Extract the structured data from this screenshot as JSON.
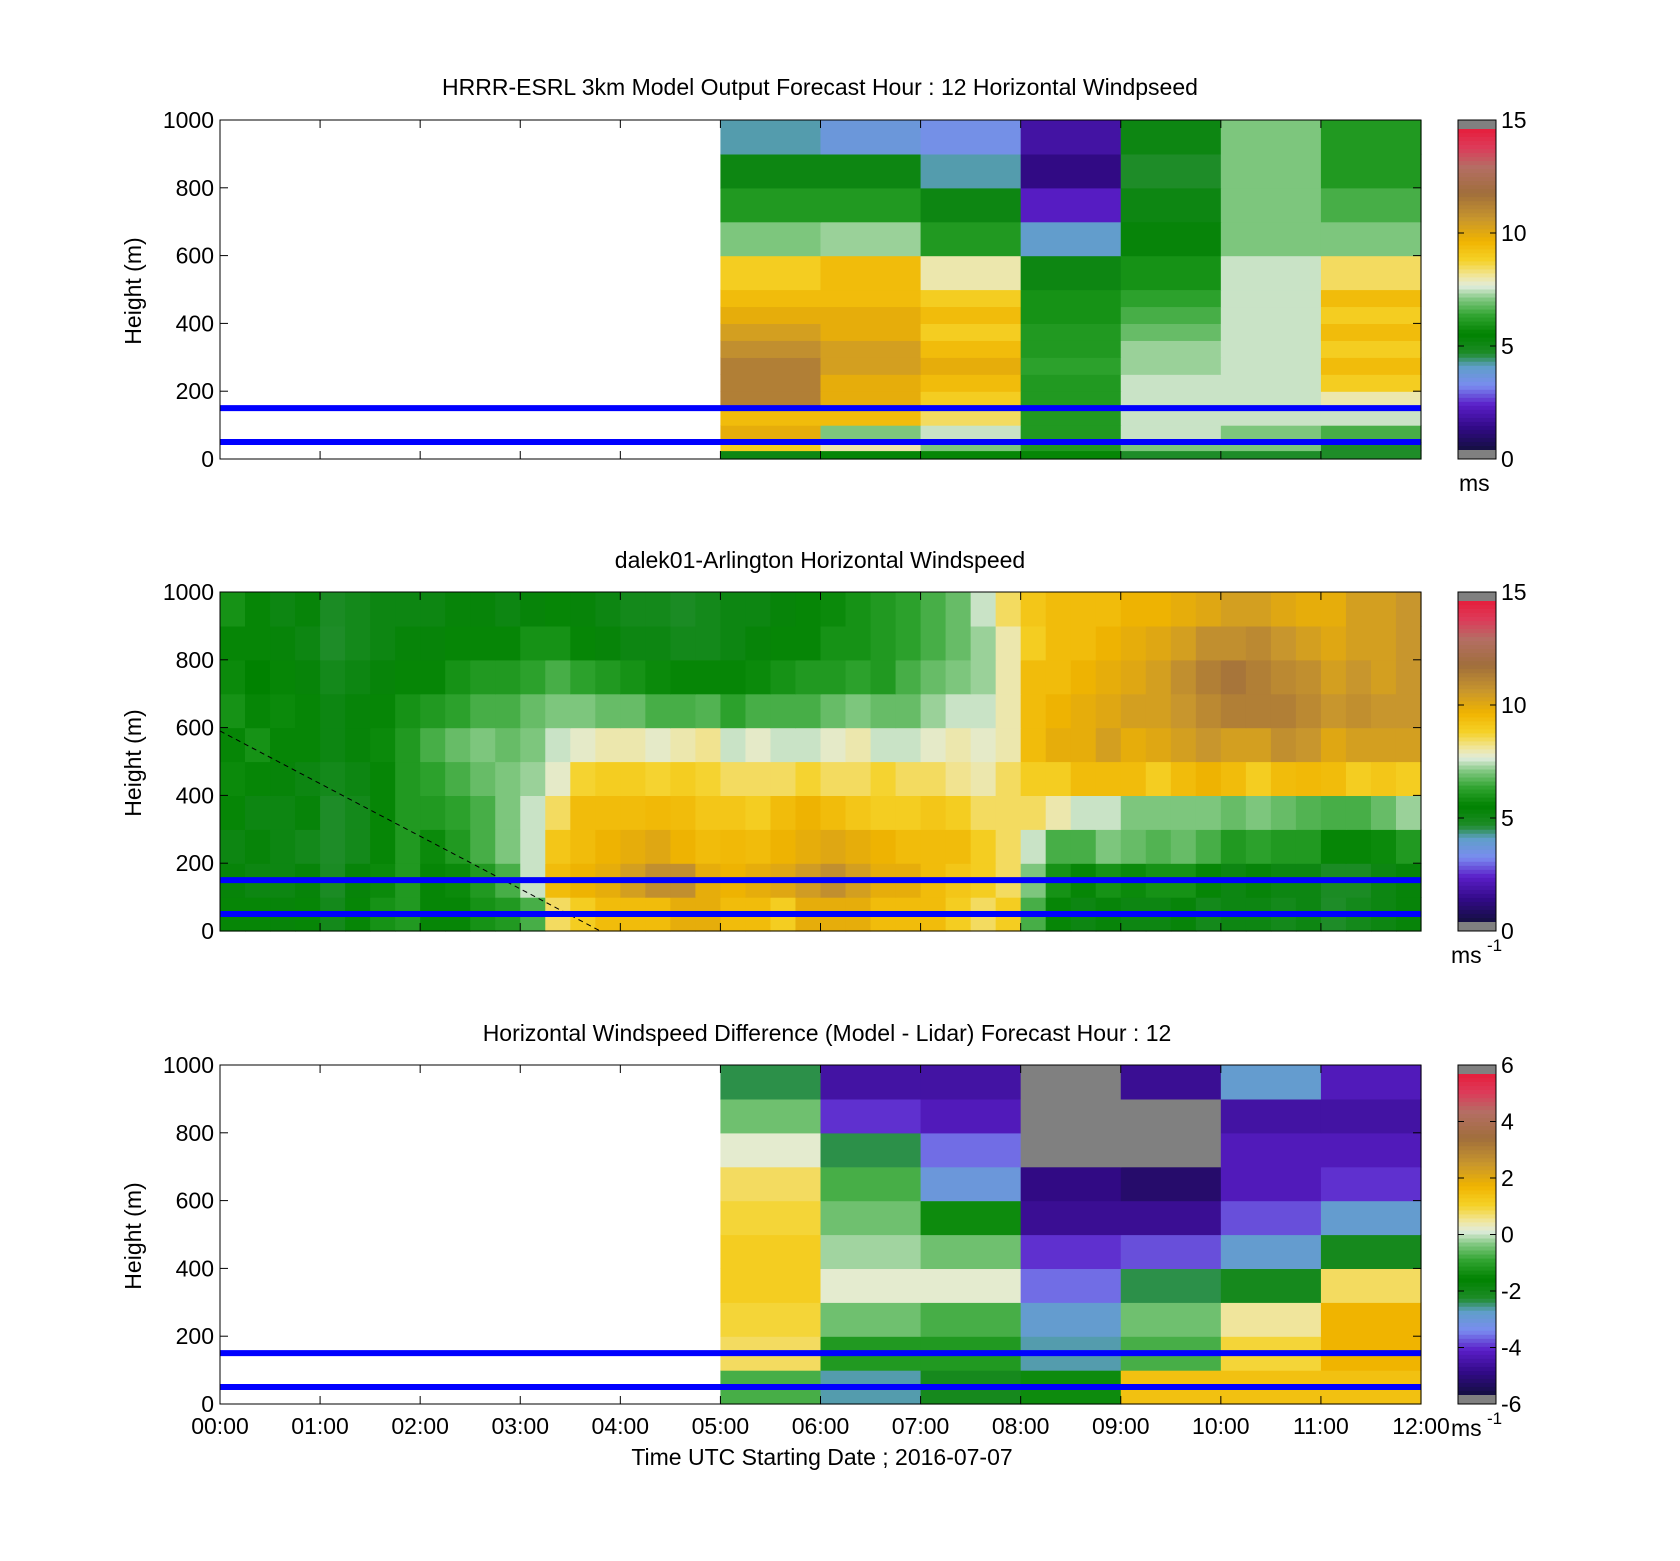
{
  "figure": {
    "background": "#ffffff"
  },
  "colors": {
    "guide_line": "#0000ff",
    "gap": "#808080",
    "blank": "#ffffff"
  },
  "chart_data": [
    {
      "id": "model",
      "type": "heatmap",
      "title": "HRRR-ESRL 3km Model Output   Forecast Hour : 12 Horizontal Windpseed",
      "xlabel": "",
      "ylabel": "Height (m)",
      "xlim": [
        0,
        12
      ],
      "ylim": [
        0,
        1000
      ],
      "yticks": [
        0,
        200,
        400,
        600,
        800,
        1000
      ],
      "ytick_labels": [
        "0",
        "200",
        "400",
        "600",
        "800",
        "1000"
      ],
      "xticks": [
        0,
        1,
        2,
        3,
        4,
        5,
        6,
        7,
        8,
        9,
        10,
        11,
        12
      ],
      "xtick_labels": [],
      "guide_lines_m": [
        50,
        150
      ],
      "colorbar": {
        "min": 0,
        "max": 15,
        "ticks": [
          0,
          5,
          10,
          15
        ],
        "tick_labels": [
          "0",
          "5",
          "10",
          "15"
        ],
        "unit": "ms",
        "unit_sup": ""
      },
      "x_edges_hours": [
        5,
        6,
        7,
        8,
        9,
        10,
        11,
        12
      ],
      "y_edges_m": [
        0,
        25,
        50,
        100,
        150,
        200,
        250,
        300,
        350,
        400,
        450,
        500,
        600,
        700,
        800,
        900,
        1000
      ],
      "values": [
        [
          5.0,
          5.5,
          5.5,
          5.5,
          4.5,
          4.5,
          4.5
        ],
        [
          9.0,
          8.0,
          7.0,
          6.0,
          7.0,
          7.0,
          4.5
        ],
        [
          10.0,
          7.0,
          7.5,
          6.0,
          7.5,
          7.0,
          6.5
        ],
        [
          9.5,
          9.5,
          8.5,
          6.0,
          7.5,
          7.5,
          7.5
        ],
        [
          11.5,
          10.0,
          9.0,
          6.0,
          7.5,
          7.5,
          8.0
        ],
        [
          11.5,
          10.0,
          9.5,
          6.0,
          7.5,
          7.5,
          9.0
        ],
        [
          11.5,
          10.5,
          10.0,
          6.2,
          7.2,
          7.5,
          9.5
        ],
        [
          11.0,
          10.5,
          9.5,
          6.0,
          7.2,
          7.5,
          9.0
        ],
        [
          10.5,
          10.0,
          9.0,
          6.0,
          6.8,
          7.5,
          9.5
        ],
        [
          10.0,
          10.0,
          9.5,
          5.8,
          6.5,
          7.5,
          9.0
        ],
        [
          9.5,
          9.5,
          9.0,
          5.8,
          6.2,
          7.5,
          9.5
        ],
        [
          9.0,
          9.5,
          8.0,
          5.0,
          5.8,
          7.5,
          8.5
        ],
        [
          7.0,
          7.2,
          6.0,
          3.8,
          5.2,
          7.0,
          7.0
        ],
        [
          6.0,
          6.0,
          5.0,
          2.0,
          5.0,
          7.0,
          6.5
        ],
        [
          5.0,
          5.0,
          4.0,
          1.0,
          4.5,
          7.0,
          6.0
        ],
        [
          4.0,
          3.5,
          3.2,
          1.5,
          5.0,
          7.0,
          6.0
        ]
      ]
    },
    {
      "id": "lidar",
      "type": "heatmap",
      "title": "dalek01-Arlington  Horizontal Windspeed",
      "xlabel": "",
      "ylabel": "Height (m)",
      "xlim": [
        0,
        12
      ],
      "ylim": [
        0,
        1000
      ],
      "yticks": [
        0,
        200,
        400,
        600,
        800,
        1000
      ],
      "ytick_labels": [
        "0",
        "200",
        "400",
        "600",
        "800",
        "1000"
      ],
      "xticks": [
        0,
        1,
        2,
        3,
        4,
        5,
        6,
        7,
        8,
        9,
        10,
        11,
        12
      ],
      "xtick_labels": [],
      "guide_lines_m": [
        50,
        150
      ],
      "boundary_line": {
        "x_hours": [
          0,
          3.8
        ],
        "y_m": [
          590,
          0
        ],
        "style": "dashed"
      },
      "colorbar": {
        "min": 0,
        "max": 15,
        "ticks": [
          0,
          5,
          10,
          15
        ],
        "tick_labels": [
          "0",
          "5",
          "10",
          "15"
        ],
        "unit": "ms",
        "unit_sup": "-1"
      },
      "x_edges_hours": [
        0,
        0.25,
        0.5,
        0.75,
        1,
        1.25,
        1.5,
        1.75,
        2,
        2.25,
        2.5,
        2.75,
        3,
        3.25,
        3.5,
        3.75,
        4,
        4.25,
        4.5,
        4.75,
        5,
        5.25,
        5.5,
        5.75,
        6,
        6.25,
        6.5,
        6.75,
        7,
        7.25,
        7.5,
        7.75,
        8,
        8.25,
        8.5,
        8.75,
        9,
        9.25,
        9.5,
        9.75,
        10,
        10.25,
        10.5,
        10.75,
        11,
        11.25,
        11.5,
        11.75,
        12
      ],
      "y_edges_m": [
        0,
        100,
        200,
        300,
        400,
        500,
        600,
        700,
        800,
        900,
        1000
      ],
      "values": [
        [
          5.5,
          5.5,
          5.2,
          5.5,
          4.8,
          5.5,
          5.8,
          6.0,
          5.5,
          5.5,
          5.8,
          6.0,
          6.5,
          8.5,
          9.0,
          9.5,
          9.5,
          9.5,
          10.0,
          10.0,
          9.5,
          9.5,
          9.0,
          10.0,
          10.0,
          10.0,
          9.5,
          9.5,
          9.5,
          9.0,
          8.5,
          9.0,
          6.5,
          5.5,
          5.0,
          5.2,
          5.0,
          5.0,
          5.2,
          4.8,
          5.0,
          5.0,
          4.8,
          5.0,
          4.5,
          4.8,
          5.0,
          5.2,
          6.0
        ],
        [
          5.2,
          5.0,
          5.0,
          5.2,
          4.6,
          5.2,
          5.6,
          6.0,
          5.5,
          5.6,
          6.0,
          6.5,
          7.5,
          9.5,
          9.8,
          10.0,
          10.5,
          11.0,
          11.0,
          10.0,
          9.8,
          10.0,
          10.2,
          10.6,
          11.0,
          10.5,
          10.0,
          10.0,
          9.5,
          9.2,
          9.0,
          8.5,
          7.0,
          5.8,
          5.5,
          5.8,
          5.6,
          5.8,
          5.8,
          5.5,
          5.0,
          5.2,
          5.0,
          5.0,
          4.6,
          4.6,
          5.0,
          5.2,
          6.0
        ],
        [
          5.0,
          5.2,
          5.0,
          4.8,
          4.5,
          4.8,
          5.5,
          6.0,
          5.6,
          6.0,
          6.5,
          7.0,
          7.5,
          9.2,
          9.5,
          9.8,
          10.0,
          10.2,
          9.8,
          9.5,
          9.6,
          9.5,
          9.8,
          10.0,
          10.2,
          10.0,
          9.8,
          9.5,
          9.5,
          9.5,
          9.0,
          8.5,
          7.5,
          6.5,
          6.5,
          7.0,
          6.8,
          6.6,
          6.8,
          6.5,
          6.0,
          6.2,
          6.0,
          6.0,
          5.5,
          5.5,
          5.6,
          6.0,
          7.0
        ],
        [
          5.5,
          5.0,
          5.0,
          5.2,
          4.5,
          4.8,
          5.5,
          6.0,
          6.0,
          6.2,
          6.5,
          7.0,
          7.5,
          8.5,
          9.5,
          9.5,
          9.5,
          9.6,
          9.5,
          9.2,
          9.2,
          9.0,
          9.5,
          9.8,
          9.5,
          9.2,
          9.0,
          9.0,
          9.2,
          9.0,
          8.5,
          8.5,
          8.5,
          8.0,
          7.5,
          7.5,
          7.0,
          7.0,
          7.0,
          7.0,
          6.8,
          7.0,
          6.8,
          6.6,
          6.5,
          6.5,
          6.8,
          7.2,
          8.0
        ],
        [
          5.6,
          5.5,
          5.2,
          5.0,
          4.8,
          5.0,
          5.5,
          6.0,
          6.2,
          6.5,
          6.8,
          7.0,
          7.2,
          7.8,
          8.8,
          9.0,
          9.0,
          8.8,
          9.0,
          8.8,
          8.5,
          8.5,
          8.5,
          8.8,
          8.5,
          8.5,
          8.8,
          8.5,
          8.5,
          8.2,
          8.0,
          8.5,
          9.0,
          9.0,
          9.5,
          9.5,
          9.5,
          9.0,
          9.5,
          9.8,
          9.5,
          9.0,
          9.5,
          9.6,
          9.5,
          9.0,
          9.2,
          9.0,
          9.5
        ],
        [
          5.5,
          5.8,
          5.5,
          5.5,
          5.0,
          5.2,
          5.6,
          6.0,
          6.5,
          6.8,
          7.0,
          6.8,
          7.0,
          7.5,
          7.8,
          8.0,
          8.0,
          7.8,
          8.0,
          8.2,
          7.5,
          7.8,
          7.5,
          7.5,
          7.8,
          8.0,
          7.5,
          7.5,
          7.8,
          8.0,
          7.8,
          8.0,
          9.5,
          10.0,
          10.0,
          10.5,
          10.0,
          10.2,
          10.5,
          10.8,
          10.5,
          10.5,
          11.0,
          10.8,
          10.2,
          10.5,
          10.5,
          10.5,
          10.8
        ],
        [
          5.8,
          5.5,
          5.6,
          5.5,
          5.0,
          5.2,
          5.5,
          5.8,
          6.0,
          6.2,
          6.5,
          6.5,
          6.8,
          7.0,
          7.0,
          6.8,
          6.8,
          6.5,
          6.5,
          6.6,
          6.2,
          6.5,
          6.5,
          6.5,
          6.8,
          7.0,
          6.8,
          6.8,
          7.2,
          7.5,
          7.5,
          8.0,
          9.5,
          9.8,
          10.0,
          10.2,
          10.5,
          10.5,
          10.8,
          11.2,
          11.5,
          11.5,
          11.5,
          11.2,
          10.8,
          11.0,
          10.8,
          10.8,
          11.0
        ],
        [
          5.6,
          5.4,
          5.5,
          5.2,
          4.8,
          5.0,
          5.2,
          5.5,
          5.5,
          5.8,
          6.0,
          6.0,
          6.2,
          6.5,
          6.2,
          6.0,
          5.8,
          5.6,
          5.5,
          5.5,
          5.5,
          5.6,
          5.8,
          6.0,
          6.0,
          6.2,
          6.0,
          6.5,
          6.8,
          7.0,
          7.2,
          8.0,
          9.5,
          9.5,
          9.8,
          10.0,
          10.2,
          10.5,
          11.0,
          11.5,
          11.8,
          11.5,
          11.2,
          11.0,
          10.5,
          10.8,
          10.5,
          10.8,
          11.0
        ],
        [
          5.5,
          5.5,
          5.2,
          5.0,
          4.5,
          4.8,
          5.0,
          5.2,
          5.2,
          5.5,
          5.5,
          5.5,
          5.8,
          5.8,
          5.5,
          5.2,
          5.0,
          5.0,
          4.8,
          4.8,
          5.0,
          5.2,
          5.5,
          5.5,
          5.8,
          5.8,
          6.0,
          6.2,
          6.5,
          6.8,
          7.2,
          8.0,
          9.0,
          9.5,
          9.5,
          9.8,
          10.0,
          10.2,
          10.5,
          11.0,
          11.0,
          11.2,
          10.8,
          10.5,
          10.2,
          10.5,
          10.5,
          10.8,
          11.0
        ],
        [
          5.8,
          5.5,
          5.0,
          5.2,
          4.6,
          4.8,
          5.0,
          5.0,
          5.0,
          5.2,
          5.2,
          5.0,
          5.2,
          5.5,
          5.2,
          5.0,
          4.8,
          4.8,
          4.6,
          4.8,
          5.0,
          5.0,
          5.2,
          5.5,
          5.6,
          5.8,
          6.0,
          6.2,
          6.5,
          6.8,
          7.5,
          8.5,
          9.2,
          9.5,
          9.5,
          9.5,
          9.8,
          9.8,
          10.0,
          10.2,
          10.5,
          10.5,
          10.2,
          10.0,
          10.0,
          10.5,
          10.5,
          10.8,
          11.5
        ]
      ]
    },
    {
      "id": "diff",
      "type": "heatmap",
      "title": "Horizontal Windspeed Difference (Model - Lidar) Forecast Hour : 12",
      "xlabel": "Time UTC  Starting Date ; 2016-07-07",
      "ylabel": "Height (m)",
      "xlim": [
        0,
        12
      ],
      "ylim": [
        0,
        1000
      ],
      "yticks": [
        0,
        200,
        400,
        600,
        800,
        1000
      ],
      "ytick_labels": [
        "0",
        "200",
        "400",
        "600",
        "800",
        "1000"
      ],
      "xticks": [
        0,
        1,
        2,
        3,
        4,
        5,
        6,
        7,
        8,
        9,
        10,
        11,
        12
      ],
      "xtick_labels": [
        "00:00",
        "01:00",
        "02:00",
        "03:00",
        "04:00",
        "05:00",
        "06:00",
        "07:00",
        "08:00",
        "09:00",
        "10:00",
        "11:00",
        "12:00"
      ],
      "guide_lines_m": [
        50,
        150
      ],
      "colorbar": {
        "min": -6,
        "max": 6,
        "ticks": [
          -6,
          -4,
          -2,
          0,
          2,
          4,
          6
        ],
        "tick_labels": [
          "-6",
          "-4",
          "-2",
          "0",
          "2",
          "4",
          "6"
        ],
        "unit": "ms",
        "unit_sup": "-1"
      },
      "x_edges_hours": [
        5,
        6,
        7,
        8,
        9,
        10,
        11,
        12
      ],
      "y_edges_m": [
        0,
        100,
        200,
        300,
        400,
        500,
        600,
        700,
        800,
        900,
        1000
      ],
      "values": [
        [
          -0.8,
          -2.8,
          -2.2,
          -1.5,
          1.5,
          1.5,
          1.5
        ],
        [
          0.8,
          -1.2,
          -1.2,
          -2.8,
          -0.8,
          1.0,
          1.8
        ],
        [
          1.0,
          -0.5,
          -0.8,
          -3.0,
          -0.5,
          0.5,
          1.8
        ],
        [
          1.2,
          0.2,
          0.2,
          -3.8,
          -2.5,
          -2.2,
          0.8
        ],
        [
          1.2,
          -0.2,
          -0.5,
          -4.2,
          -4.0,
          -3.0,
          -2.2
        ],
        [
          1.0,
          -0.5,
          -1.5,
          -5.0,
          -5.0,
          -4.0,
          -3.0
        ],
        [
          0.8,
          -0.8,
          -3.2,
          -5.2,
          -5.5,
          -4.5,
          -4.2
        ],
        [
          0.2,
          -2.5,
          -3.8,
          null,
          null,
          -4.5,
          -4.5
        ],
        [
          -0.5,
          -4.2,
          -4.5,
          null,
          null,
          -4.8,
          -4.8
        ],
        [
          -2.5,
          -4.8,
          -4.8,
          null,
          -5.0,
          -3.0,
          -4.5
        ]
      ]
    }
  ]
}
